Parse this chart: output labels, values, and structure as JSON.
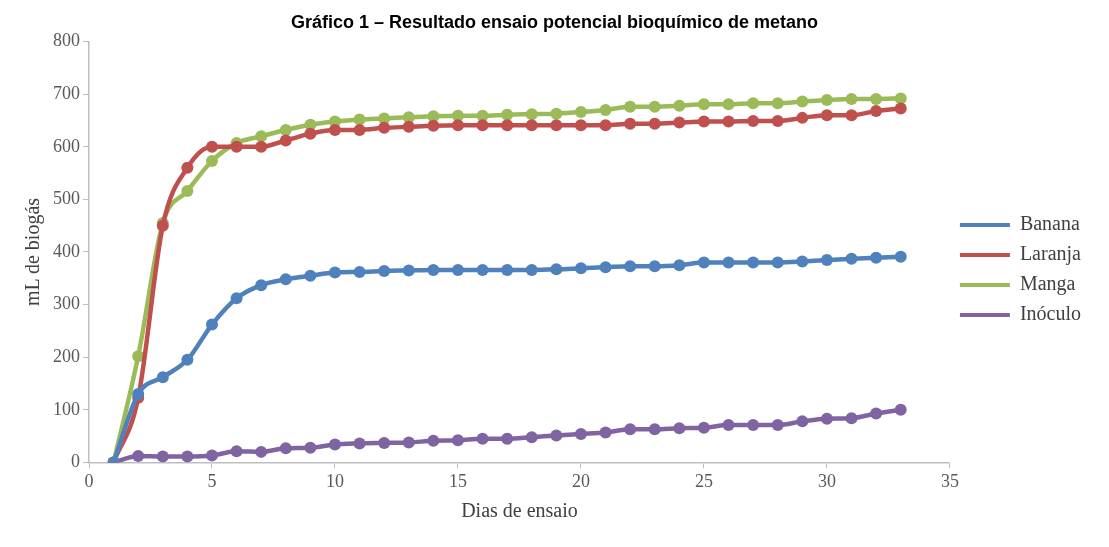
{
  "chart_data": {
    "type": "line",
    "title": "Gráfico 1 – Resultado ensaio potencial bioquímico de metano",
    "xlabel": "Dias de ensaio",
    "ylabel": "mL de biogás",
    "x": [
      1,
      2,
      3,
      4,
      5,
      6,
      7,
      8,
      9,
      10,
      11,
      12,
      13,
      14,
      15,
      16,
      17,
      18,
      19,
      20,
      21,
      22,
      23,
      24,
      25,
      26,
      27,
      28,
      29,
      30,
      31,
      32,
      33
    ],
    "series": [
      {
        "name": "Banana",
        "color": "#4f81bd",
        "values": [
          0,
          130,
          162,
          195,
          262,
          312,
          337,
          348,
          355,
          361,
          362,
          364,
          365,
          366,
          366,
          366,
          366,
          366,
          367,
          369,
          371,
          373,
          373,
          375,
          380,
          380,
          380,
          380,
          382,
          385,
          387,
          389,
          391
        ]
      },
      {
        "name": "Laranja",
        "color": "#c0504d",
        "values": [
          0,
          123,
          450,
          560,
          600,
          600,
          600,
          612,
          625,
          632,
          632,
          636,
          638,
          640,
          641,
          641,
          641,
          641,
          641,
          641,
          641,
          644,
          644,
          646,
          648,
          648,
          649,
          649,
          655,
          660,
          660,
          668,
          673
        ]
      },
      {
        "name": "Manga",
        "color": "#9bbb59",
        "values": [
          0,
          202,
          455,
          516,
          573,
          607,
          620,
          632,
          642,
          648,
          652,
          654,
          656,
          658,
          659,
          659,
          661,
          662,
          663,
          666,
          670,
          676,
          676,
          678,
          681,
          681,
          683,
          683,
          686,
          689,
          691,
          691,
          692
        ]
      },
      {
        "name": "Inóculo",
        "color": "#8064a2",
        "values": [
          0,
          12,
          11,
          11,
          13,
          21,
          20,
          27,
          28,
          34,
          36,
          37,
          38,
          41,
          42,
          45,
          45,
          48,
          51,
          54,
          57,
          63,
          63,
          65,
          66,
          71,
          71,
          71,
          78,
          83,
          84,
          93,
          100
        ]
      }
    ],
    "xlim": [
      0,
      35
    ],
    "xticks": [
      0,
      5,
      10,
      15,
      20,
      25,
      30,
      35
    ],
    "ylim": [
      0,
      800
    ],
    "yticks": [
      0,
      100,
      200,
      300,
      400,
      500,
      600,
      700,
      800
    ],
    "grid": false,
    "legend": "right",
    "marker": "circle",
    "line_style": "solid"
  }
}
